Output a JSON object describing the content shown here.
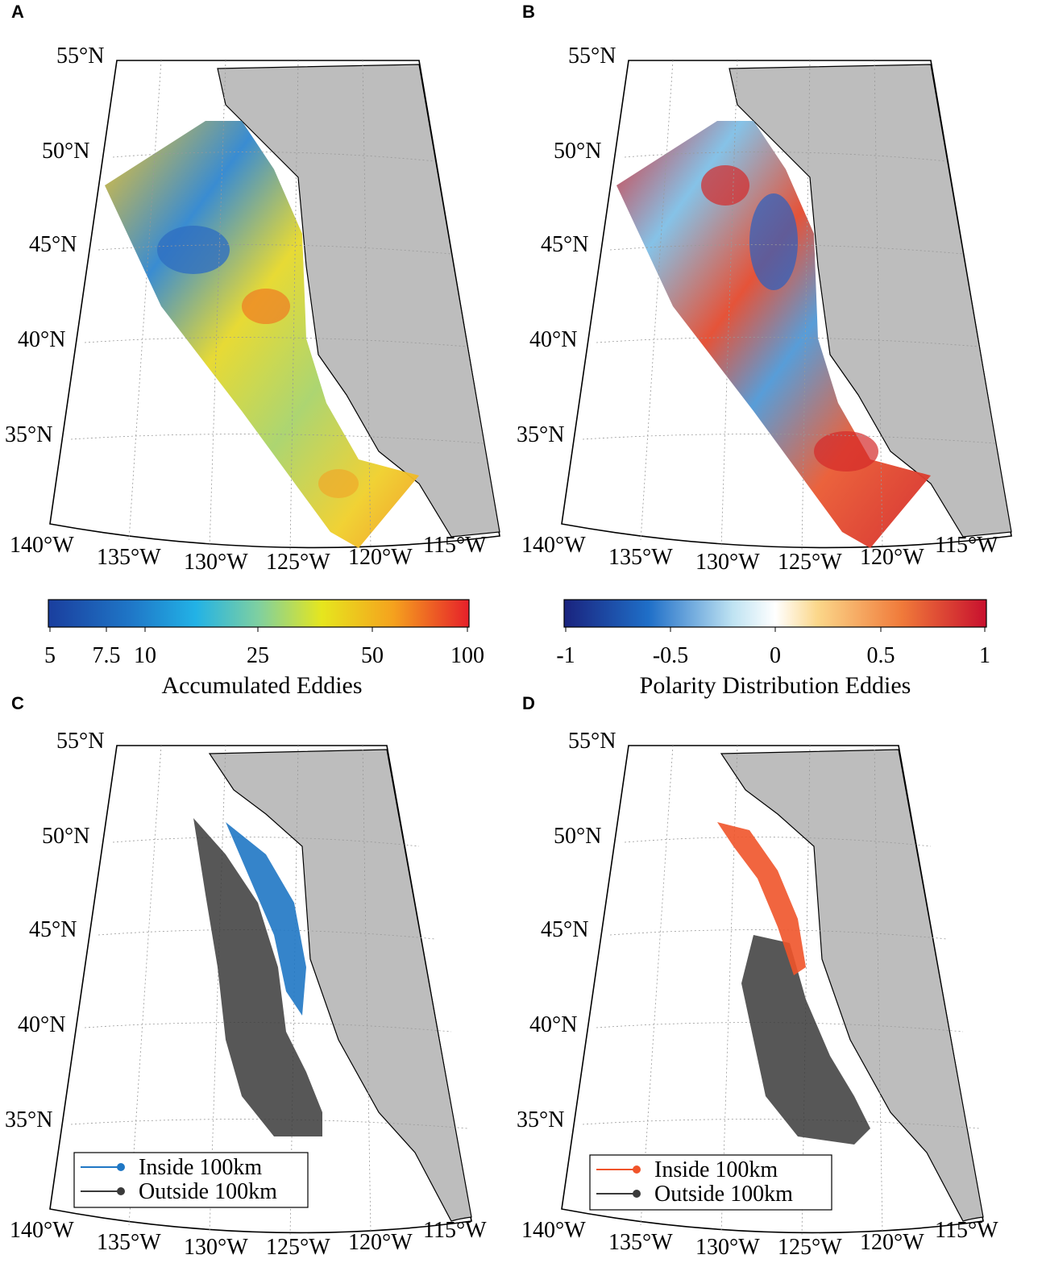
{
  "panels": [
    {
      "letter": "A"
    },
    {
      "letter": "B"
    },
    {
      "letter": "C"
    },
    {
      "letter": "D"
    }
  ],
  "map": {
    "lat_labels": [
      "55°N",
      "50°N",
      "45°N",
      "40°N",
      "35°N"
    ],
    "lon_labels": [
      "140°W",
      "135°W",
      "130°W",
      "125°W",
      "120°W",
      "115°W"
    ],
    "land_color": "#bdbdbd",
    "ocean_color": "#ffffff"
  },
  "colorbar_a": {
    "title": "Accumulated Eddies",
    "ticks": [
      "5",
      "7.5",
      "10",
      "25",
      "50",
      "100"
    ],
    "colors": [
      "#1a3e9e",
      "#1f78c8",
      "#22b2e6",
      "#7fd0a0",
      "#e6e61e",
      "#f5a21e",
      "#e6202a"
    ]
  },
  "colorbar_b": {
    "title": "Polarity Distribution Eddies",
    "ticks": [
      "-1",
      "-0.5",
      "0",
      "0.5",
      "1"
    ],
    "colors": [
      "#1a237e",
      "#1f6fc8",
      "#bfe3f2",
      "#ffffff",
      "#fbd78a",
      "#f07a3a",
      "#c8102e"
    ]
  },
  "legend_c": {
    "items": [
      {
        "label": "Inside 100km",
        "color": "#1f77c4"
      },
      {
        "label": "Outside 100km",
        "color": "#3a3a3a"
      }
    ]
  },
  "legend_d": {
    "items": [
      {
        "label": "Inside 100km",
        "color": "#f0542a"
      },
      {
        "label": "Outside 100km",
        "color": "#3a3a3a"
      }
    ]
  }
}
